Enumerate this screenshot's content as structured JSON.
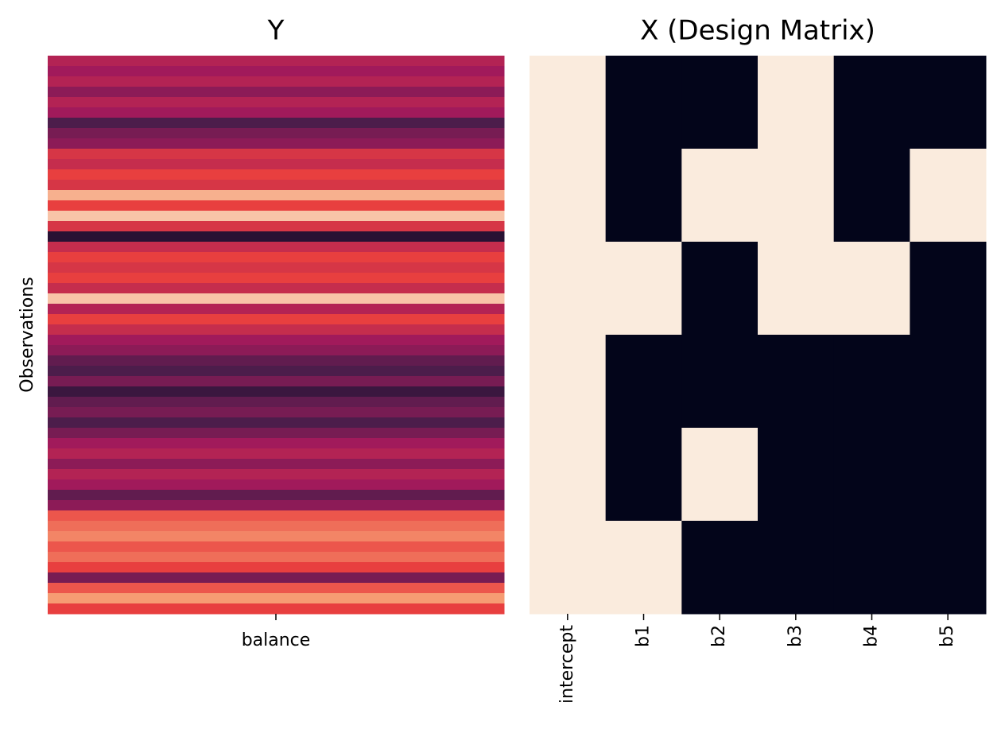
{
  "chart_data": [
    {
      "type": "heatmap",
      "title": "Y",
      "ylabel": "Observations",
      "categories": [
        "balance"
      ],
      "clim": [
        0,
        1
      ],
      "colormap": [
        "#03051a",
        "#4c1d4b",
        "#a11a5b",
        "#e83f3f",
        "#f69c73",
        "#faebdd"
      ],
      "values": [
        [
          0.45
        ],
        [
          0.4
        ],
        [
          0.45
        ],
        [
          0.35
        ],
        [
          0.45
        ],
        [
          0.4
        ],
        [
          0.2
        ],
        [
          0.3
        ],
        [
          0.35
        ],
        [
          0.55
        ],
        [
          0.5
        ],
        [
          0.6
        ],
        [
          0.55
        ],
        [
          0.85
        ],
        [
          0.6
        ],
        [
          0.9
        ],
        [
          0.55
        ],
        [
          0.1
        ],
        [
          0.5
        ],
        [
          0.6
        ],
        [
          0.55
        ],
        [
          0.6
        ],
        [
          0.5
        ],
        [
          0.9
        ],
        [
          0.45
        ],
        [
          0.6
        ],
        [
          0.5
        ],
        [
          0.4
        ],
        [
          0.35
        ],
        [
          0.25
        ],
        [
          0.2
        ],
        [
          0.3
        ],
        [
          0.15
        ],
        [
          0.25
        ],
        [
          0.3
        ],
        [
          0.2
        ],
        [
          0.3
        ],
        [
          0.4
        ],
        [
          0.45
        ],
        [
          0.35
        ],
        [
          0.45
        ],
        [
          0.4
        ],
        [
          0.25
        ],
        [
          0.35
        ],
        [
          0.65
        ],
        [
          0.7
        ],
        [
          0.75
        ],
        [
          0.65
        ],
        [
          0.7
        ],
        [
          0.6
        ],
        [
          0.3
        ],
        [
          0.65
        ],
        [
          0.8
        ],
        [
          0.6
        ]
      ]
    },
    {
      "type": "heatmap",
      "title": "X (Design Matrix)",
      "categories": [
        "intercept",
        "b1",
        "b2",
        "b3",
        "b4",
        "b5"
      ],
      "clim": [
        0,
        1
      ],
      "colormap": [
        "#03051a",
        "#4c1d4b",
        "#a11a5b",
        "#e83f3f",
        "#f69c73",
        "#faebdd"
      ],
      "values": [
        [
          1,
          0,
          0,
          1,
          0,
          0
        ],
        [
          1,
          0,
          1,
          1,
          0,
          1
        ],
        [
          1,
          1,
          0,
          1,
          1,
          0
        ],
        [
          1,
          0,
          0,
          0,
          0,
          0
        ],
        [
          1,
          0,
          1,
          0,
          0,
          0
        ],
        [
          1,
          1,
          0,
          0,
          0,
          0
        ]
      ]
    }
  ]
}
